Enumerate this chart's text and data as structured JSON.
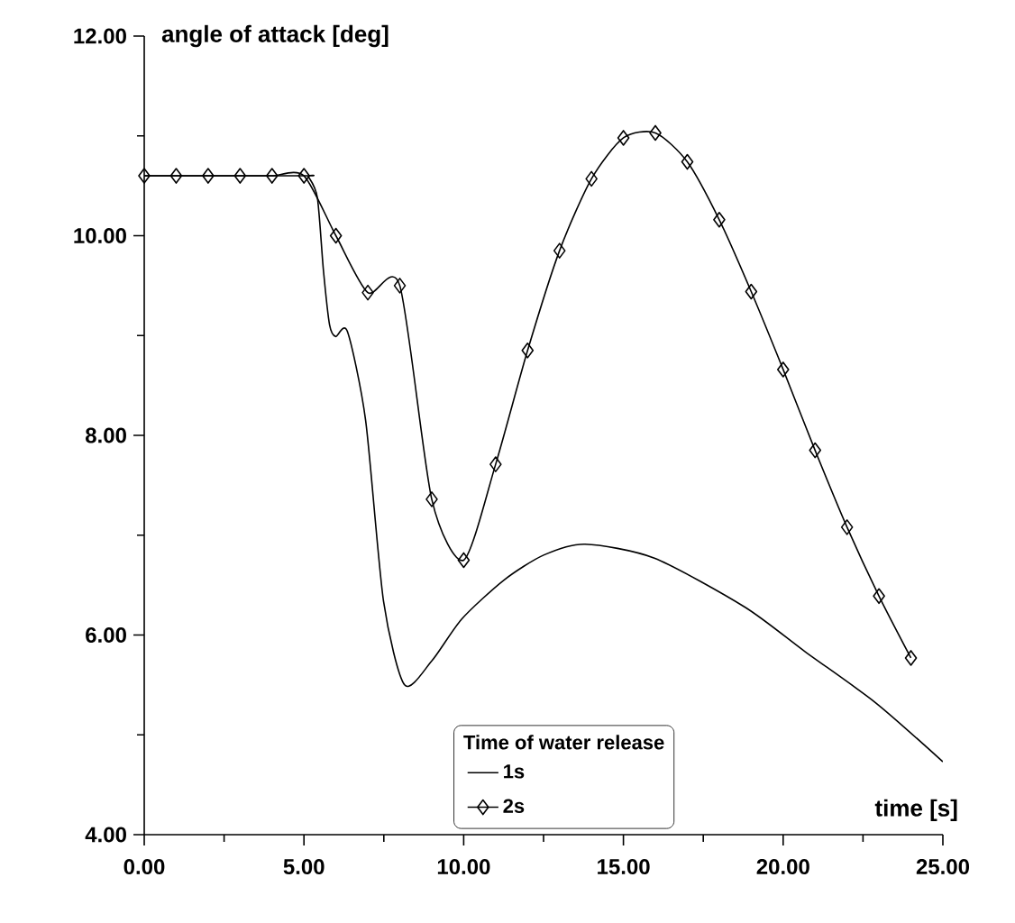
{
  "chart_data": {
    "type": "line",
    "xlabel": "time [s]",
    "ylabel": "angle of attack [deg]",
    "legend_title": "Time of water release",
    "xlim": [
      0,
      25
    ],
    "ylim": [
      4,
      12
    ],
    "xticks": [
      {
        "value": 0,
        "label": "0.00"
      },
      {
        "value": 5,
        "label": "5.00"
      },
      {
        "value": 10,
        "label": "10.00"
      },
      {
        "value": 15,
        "label": "15.00"
      },
      {
        "value": 20,
        "label": "20.00"
      },
      {
        "value": 25,
        "label": "25.00"
      }
    ],
    "yticks": [
      {
        "value": 4,
        "label": "4.00"
      },
      {
        "value": 6,
        "label": "6.00"
      },
      {
        "value": 8,
        "label": "8.00"
      },
      {
        "value": 10,
        "label": "10.00"
      },
      {
        "value": 12,
        "label": "12.00"
      }
    ],
    "grid": false,
    "legend": "bottom",
    "line_style": "solid",
    "series": [
      {
        "name": "1s",
        "color": "#000000",
        "marker": "none",
        "x": [
          0,
          5,
          5.14,
          5.42,
          5.61,
          5.8,
          5.99,
          6.36,
          6.93,
          7.49,
          8.15,
          9.0,
          9.94,
          11.26,
          12.5,
          13.8,
          15.97,
          18.8,
          20.7,
          22.9,
          25
        ],
        "values": [
          10.6,
          10.6,
          10.59,
          10.38,
          9.65,
          9.11,
          8.99,
          9.04,
          8.15,
          6.34,
          5.5,
          5.74,
          6.16,
          6.55,
          6.8,
          6.91,
          6.77,
          6.28,
          5.83,
          5.32,
          4.73
        ]
      },
      {
        "name": "2s",
        "color": "#000000",
        "marker": "diamond",
        "x": [
          0,
          1,
          2,
          3,
          4,
          5,
          6,
          7,
          8,
          9,
          10,
          11,
          12,
          13,
          14,
          15,
          16,
          17,
          18,
          19,
          20,
          21,
          22,
          23,
          24
        ],
        "values": [
          10.6,
          10.6,
          10.6,
          10.6,
          10.6,
          10.6,
          10.0,
          9.43,
          9.5,
          7.36,
          6.75,
          7.71,
          8.85,
          9.85,
          10.57,
          10.98,
          11.03,
          10.74,
          10.16,
          9.44,
          8.66,
          7.85,
          7.08,
          6.39,
          5.77
        ]
      }
    ]
  }
}
